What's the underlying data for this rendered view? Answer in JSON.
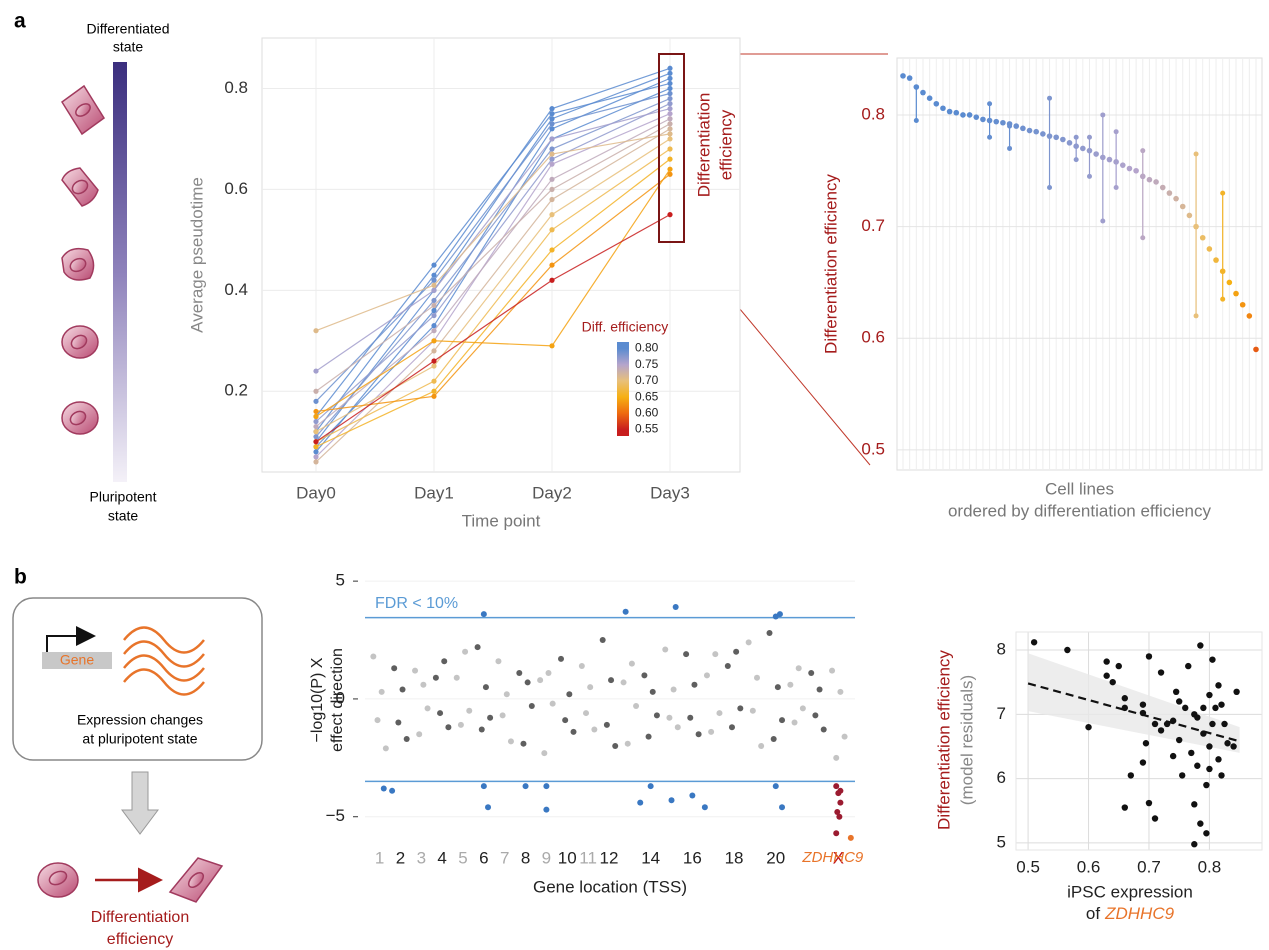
{
  "panels": [
    {
      "label": "a"
    },
    {
      "label": "b"
    }
  ],
  "diagram_a": {
    "top": [
      "Differentiated",
      "state"
    ],
    "bottom": [
      "Pluripotent",
      "state"
    ]
  },
  "diagram_b": {
    "gene": "Gene",
    "caption": [
      "Expression changes",
      "at pluripotent state"
    ],
    "outcome": [
      "Differentiation",
      "efficiency"
    ]
  },
  "chart_data": [
    {
      "type": "line",
      "xlabel": "Time point",
      "ylabel": "Average pseudotime",
      "categories": [
        "Day0",
        "Day1",
        "Day2",
        "Day3"
      ],
      "ylim": [
        0.04,
        0.9
      ],
      "yticks": [
        0.2,
        0.4,
        0.6,
        0.8
      ],
      "grid": true,
      "annotation": [
        "Differentiation",
        "efficiency"
      ],
      "series": [
        {
          "values": [
            0.1,
            0.4,
            0.74,
            0.83
          ]
        },
        {
          "values": [
            0.12,
            0.43,
            0.76,
            0.84
          ]
        },
        {
          "values": [
            0.08,
            0.36,
            0.72,
            0.82
          ]
        },
        {
          "values": [
            0.15,
            0.45,
            0.75,
            0.81
          ]
        },
        {
          "values": [
            0.09,
            0.33,
            0.7,
            0.8
          ]
        },
        {
          "values": [
            0.18,
            0.42,
            0.73,
            0.79
          ]
        },
        {
          "values": [
            0.11,
            0.38,
            0.68,
            0.78
          ]
        },
        {
          "values": [
            0.14,
            0.35,
            0.66,
            0.77
          ]
        },
        {
          "values": [
            0.24,
            0.4,
            0.7,
            0.76
          ]
        },
        {
          "values": [
            0.07,
            0.3,
            0.65,
            0.75
          ]
        },
        {
          "values": [
            0.13,
            0.32,
            0.62,
            0.74
          ]
        },
        {
          "values": [
            0.2,
            0.37,
            0.6,
            0.73
          ]
        },
        {
          "values": [
            0.06,
            0.28,
            0.58,
            0.72
          ]
        },
        {
          "values": [
            0.32,
            0.41,
            0.67,
            0.71
          ]
        },
        {
          "values": [
            0.12,
            0.25,
            0.55,
            0.7
          ]
        },
        {
          "values": [
            0.1,
            0.22,
            0.52,
            0.68
          ]
        },
        {
          "values": [
            0.09,
            0.2,
            0.48,
            0.66
          ]
        },
        {
          "values": [
            0.15,
            0.3,
            0.29,
            0.64
          ]
        },
        {
          "values": [
            0.16,
            0.19,
            0.45,
            0.63
          ]
        },
        {
          "values": [
            0.1,
            0.26,
            0.42,
            0.55
          ]
        }
      ],
      "colorbar": {
        "title": "Diff. efficiency",
        "lim": [
          0.53,
          0.82
        ],
        "ticks": [
          {
            "value": 0.8,
            "label": "0.80"
          },
          0.75,
          {
            "value": 0.7,
            "label": "0.70"
          },
          0.65,
          {
            "value": 0.6,
            "label": "0.60"
          },
          0.55
        ],
        "colors": [
          "#5a8bd0",
          "#b5a4cc",
          "#e8c07a",
          "#f6b012",
          "#ee6a10",
          "#c81e1e"
        ]
      }
    },
    {
      "type": "dot",
      "xlabel": [
        "Cell lines",
        "ordered by differentiation efficiency"
      ],
      "ylabel": "Differentiation efficiency",
      "ylim": [
        0.482,
        0.851
      ],
      "yticks": [
        0.5,
        0.6,
        0.7,
        0.8
      ],
      "grid": true,
      "values": [
        0.835,
        0.833,
        0.825,
        0.82,
        0.815,
        0.81,
        0.806,
        0.803,
        0.802,
        0.8,
        0.8,
        0.798,
        0.796,
        0.795,
        0.794,
        0.793,
        0.792,
        0.79,
        0.788,
        0.786,
        0.785,
        0.783,
        0.781,
        0.78,
        0.778,
        0.775,
        0.772,
        0.77,
        0.768,
        0.765,
        0.762,
        0.76,
        0.758,
        0.755,
        0.752,
        0.75,
        0.745,
        0.742,
        0.74,
        0.735,
        0.73,
        0.725,
        0.718,
        0.71,
        0.7,
        0.69,
        0.68,
        0.67,
        0.66,
        0.65,
        0.64,
        0.63,
        0.62,
        0.59
      ],
      "lower": [
        null,
        null,
        0.795,
        null,
        null,
        null,
        null,
        null,
        null,
        null,
        null,
        null,
        null,
        0.78,
        null,
        null,
        0.77,
        null,
        null,
        null,
        null,
        null,
        0.735,
        null,
        null,
        null,
        0.76,
        null,
        0.745,
        null,
        0.705,
        null,
        0.735,
        null,
        null,
        null,
        0.69,
        null,
        null,
        null,
        null,
        null,
        null,
        null,
        0.62,
        null,
        null,
        null,
        0.635,
        null,
        null,
        null,
        null,
        null
      ],
      "upper": [
        null,
        null,
        0.825,
        null,
        null,
        null,
        null,
        null,
        null,
        null,
        null,
        null,
        null,
        0.81,
        null,
        null,
        0.79,
        null,
        null,
        null,
        null,
        null,
        0.815,
        null,
        null,
        null,
        0.78,
        null,
        0.78,
        null,
        0.8,
        null,
        0.785,
        null,
        null,
        null,
        0.768,
        null,
        null,
        null,
        null,
        null,
        null,
        null,
        0.765,
        null,
        null,
        null,
        0.73,
        null,
        null,
        null,
        null,
        null
      ]
    },
    {
      "type": "scatter",
      "xlabel": "Gene location (TSS)",
      "ylabel": [
        "−log10(P) X",
        "effect direction"
      ],
      "xlim": [
        0.3,
        23.8
      ],
      "ylim": [
        -6.2,
        5.26
      ],
      "yticks": [
        5,
        0,
        {
          "value": -5,
          "label": "−5"
        }
      ],
      "grid": true,
      "xticks": [
        {
          "value": 1,
          "label": "1"
        },
        {
          "value": 2,
          "label": "2"
        },
        {
          "value": 3,
          "label": "3"
        },
        {
          "value": 4,
          "label": "4"
        },
        {
          "value": 5,
          "label": "5"
        },
        {
          "value": 6,
          "label": "6"
        },
        {
          "value": 7,
          "label": "7"
        },
        {
          "value": 8,
          "label": "8"
        },
        {
          "value": 9,
          "label": "9"
        },
        {
          "value": 10,
          "label": "10"
        },
        {
          "value": 11,
          "label": "11"
        },
        {
          "value": 12,
          "label": "12"
        },
        {
          "value": 14,
          "label": "14"
        },
        {
          "value": 16,
          "label": "16"
        },
        {
          "value": 18,
          "label": "18"
        },
        {
          "value": 20,
          "label": "20"
        },
        {
          "value": 23,
          "label": "X"
        }
      ],
      "xtick_colors": [
        "#aaaaaa",
        "#222222",
        "#aaaaaa",
        "#222222",
        "#aaaaaa",
        "#222222",
        "#aaaaaa",
        "#222222",
        "#aaaaaa",
        "#222222",
        "#aaaaaa",
        "#222222",
        "#222222",
        "#222222",
        "#222222",
        "#222222",
        "#c0141c"
      ],
      "hlines": [
        3.45,
        -3.5
      ],
      "hline_color": "#5b9bd5",
      "hline_label": "FDR < 10%",
      "series": [
        {
          "color": "#c4c4c4",
          "x": [
            0.7,
            0.9,
            1.1,
            1.3,
            2.7,
            2.9,
            3.1,
            3.3,
            4.7,
            4.9,
            5.1,
            5.3,
            6.7,
            6.9,
            7.1,
            7.3,
            8.7,
            8.9,
            9.1,
            9.3,
            10.7,
            10.9,
            11.1,
            11.3,
            12.7,
            12.9,
            13.1,
            13.3,
            14.7,
            14.9,
            15.1,
            15.3,
            16.7,
            16.9,
            17.1,
            17.3,
            18.7,
            18.9,
            19.1,
            19.3,
            20.7,
            20.9,
            21.1,
            21.3,
            22.7,
            22.9,
            23.1,
            23.3
          ],
          "values": [
            1.8,
            -0.9,
            0.3,
            -2.1,
            1.2,
            -1.5,
            0.6,
            -0.4,
            0.9,
            -1.1,
            2.0,
            -0.5,
            1.6,
            -0.7,
            0.2,
            -1.8,
            0.8,
            -2.3,
            1.1,
            -0.2,
            1.4,
            -0.6,
            0.5,
            -1.3,
            0.7,
            -1.9,
            1.5,
            -0.3,
            2.1,
            -0.8,
            0.4,
            -1.2,
            1.0,
            -1.4,
            1.9,
            -0.6,
            2.4,
            -0.5,
            0.9,
            -2.0,
            0.6,
            -1.0,
            1.3,
            -0.4,
            1.2,
            -2.5,
            0.3,
            -1.6
          ]
        },
        {
          "color": "#5f5f5f",
          "x": [
            1.7,
            1.9,
            2.1,
            2.3,
            3.7,
            3.9,
            4.1,
            4.3,
            5.7,
            5.9,
            6.1,
            6.3,
            7.7,
            7.9,
            8.1,
            8.3,
            9.7,
            9.9,
            10.1,
            10.3,
            11.7,
            11.9,
            12.1,
            12.3,
            13.7,
            13.9,
            14.1,
            14.3,
            15.7,
            15.9,
            16.1,
            16.3,
            17.7,
            17.9,
            18.1,
            18.3,
            19.7,
            19.9,
            20.1,
            20.3,
            21.7,
            21.9,
            22.1,
            22.3
          ],
          "values": [
            1.3,
            -1.0,
            0.4,
            -1.7,
            0.9,
            -0.6,
            1.6,
            -1.2,
            2.2,
            -1.3,
            0.5,
            -0.8,
            1.1,
            -1.9,
            0.7,
            -0.3,
            1.7,
            -0.9,
            0.2,
            -1.4,
            2.5,
            -1.1,
            0.8,
            -2.0,
            1.0,
            -1.6,
            0.3,
            -0.7,
            1.9,
            -0.8,
            0.6,
            -1.5,
            1.4,
            -1.2,
            2.0,
            -0.4,
            2.8,
            -1.7,
            0.5,
            -0.9,
            1.1,
            -0.7,
            0.4,
            -1.3
          ]
        },
        {
          "color": "#3a78c2",
          "x": [
            6.0,
            12.8,
            15.2,
            20.0,
            20.2,
            1.2,
            1.6,
            6.0,
            6.2,
            8.0,
            9.0,
            9.0,
            14.0,
            13.5,
            15.0,
            16.0,
            16.6,
            20.0,
            20.3
          ],
          "values": [
            3.6,
            3.7,
            3.9,
            3.5,
            3.6,
            -3.8,
            -3.9,
            -3.7,
            -4.6,
            -3.7,
            -3.7,
            -4.7,
            -3.7,
            -4.4,
            -4.3,
            -4.1,
            -4.6,
            -3.7,
            -4.6
          ]
        },
        {
          "color": "#9b1b30",
          "x": [
            22.9,
            23.0,
            23.1,
            22.95,
            23.05,
            23.1,
            22.9
          ],
          "values": [
            -3.7,
            -4.0,
            -4.4,
            -4.8,
            -5.0,
            -3.9,
            -5.7
          ]
        },
        {
          "color": "#e8742a",
          "x": [
            23.6
          ],
          "values": [
            -5.9
          ],
          "label": "ZDHHC9"
        }
      ]
    },
    {
      "type": "scatter",
      "xlabel": [
        "iPSC expression",
        "of",
        "ZDHHC9"
      ],
      "ylabel": [
        "Differentiation efficiency",
        "(model residuals)"
      ],
      "xlim": [
        0.48,
        0.887
      ],
      "ylim": [
        4.89,
        8.28
      ],
      "xticks": [
        0.5,
        0.6,
        0.7,
        0.8
      ],
      "yticks": [
        5,
        6,
        7,
        8
      ],
      "grid": true,
      "fit": {
        "x": [
          0.5,
          0.85
        ],
        "values": [
          7.48,
          6.58
        ]
      },
      "fit_band": {
        "lower": [
          7.05,
          6.4
        ],
        "upper": [
          7.95,
          6.8
        ]
      },
      "series": [
        {
          "color": "#111111",
          "x": [
            0.51,
            0.565,
            0.63,
            0.63,
            0.64,
            0.66,
            0.66,
            0.65,
            0.6,
            0.69,
            0.7,
            0.67,
            0.69,
            0.695,
            0.7,
            0.71,
            0.66,
            0.72,
            0.73,
            0.74,
            0.745,
            0.75,
            0.755,
            0.76,
            0.765,
            0.77,
            0.775,
            0.775,
            0.78,
            0.78,
            0.785,
            0.785,
            0.79,
            0.79,
            0.795,
            0.795,
            0.8,
            0.8,
            0.805,
            0.805,
            0.81,
            0.815,
            0.815,
            0.82,
            0.82,
            0.825,
            0.83,
            0.84,
            0.845,
            0.75,
            0.72,
            0.69,
            0.71,
            0.775,
            0.8,
            0.74
          ],
          "values": [
            8.12,
            8.0,
            7.82,
            7.6,
            7.5,
            7.1,
            7.25,
            7.75,
            6.8,
            7.02,
            7.9,
            6.05,
            6.25,
            6.55,
            5.62,
            5.38,
            5.55,
            6.75,
            6.85,
            6.9,
            7.35,
            6.6,
            6.05,
            7.1,
            7.75,
            6.4,
            7.0,
            5.6,
            6.95,
            6.2,
            5.3,
            8.07,
            7.1,
            6.7,
            5.9,
            5.15,
            7.3,
            6.5,
            6.85,
            7.85,
            7.1,
            6.3,
            7.45,
            7.15,
            6.05,
            6.85,
            6.55,
            6.5,
            7.35,
            7.2,
            7.65,
            7.15,
            6.85,
            4.98,
            6.15,
            6.35
          ]
        }
      ]
    }
  ]
}
